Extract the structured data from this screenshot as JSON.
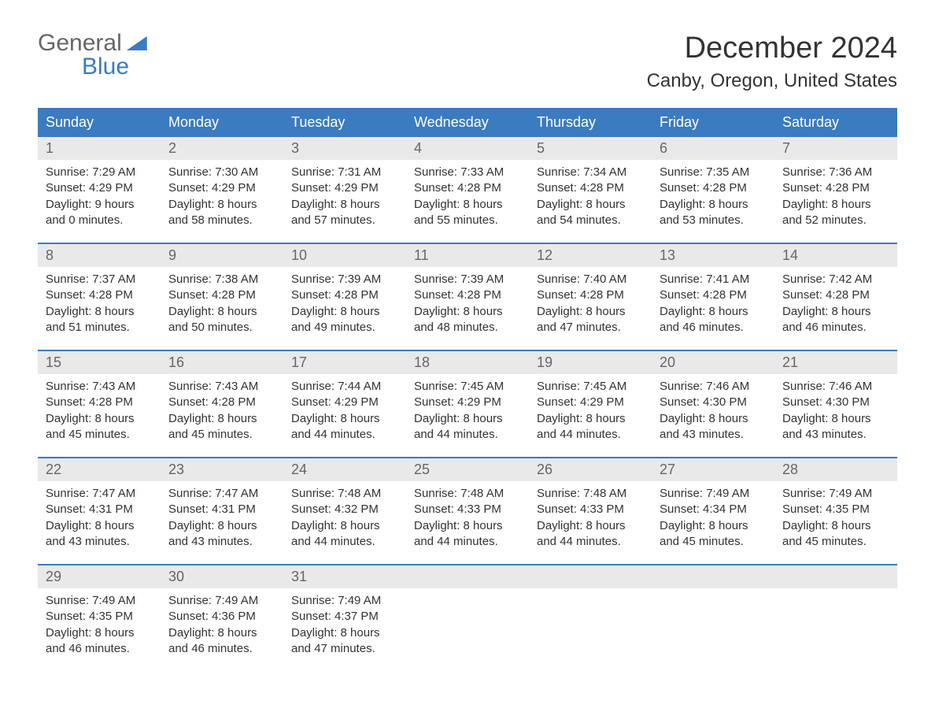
{
  "logo": {
    "text_top": "General",
    "text_bottom": "Blue"
  },
  "title": "December 2024",
  "location": "Canby, Oregon, United States",
  "colors": {
    "header_bg": "#3b7bbf",
    "header_text": "#ffffff",
    "daynum_bg": "#e9e9e9",
    "week_divider": "#3b7bbf",
    "body_text": "#333333",
    "background": "#ffffff"
  },
  "days_of_week": [
    "Sunday",
    "Monday",
    "Tuesday",
    "Wednesday",
    "Thursday",
    "Friday",
    "Saturday"
  ],
  "weeks": [
    [
      {
        "n": "1",
        "sunrise": "7:29 AM",
        "sunset": "4:29 PM",
        "daylight": "9 hours and 0 minutes."
      },
      {
        "n": "2",
        "sunrise": "7:30 AM",
        "sunset": "4:29 PM",
        "daylight": "8 hours and 58 minutes."
      },
      {
        "n": "3",
        "sunrise": "7:31 AM",
        "sunset": "4:29 PM",
        "daylight": "8 hours and 57 minutes."
      },
      {
        "n": "4",
        "sunrise": "7:33 AM",
        "sunset": "4:28 PM",
        "daylight": "8 hours and 55 minutes."
      },
      {
        "n": "5",
        "sunrise": "7:34 AM",
        "sunset": "4:28 PM",
        "daylight": "8 hours and 54 minutes."
      },
      {
        "n": "6",
        "sunrise": "7:35 AM",
        "sunset": "4:28 PM",
        "daylight": "8 hours and 53 minutes."
      },
      {
        "n": "7",
        "sunrise": "7:36 AM",
        "sunset": "4:28 PM",
        "daylight": "8 hours and 52 minutes."
      }
    ],
    [
      {
        "n": "8",
        "sunrise": "7:37 AM",
        "sunset": "4:28 PM",
        "daylight": "8 hours and 51 minutes."
      },
      {
        "n": "9",
        "sunrise": "7:38 AM",
        "sunset": "4:28 PM",
        "daylight": "8 hours and 50 minutes."
      },
      {
        "n": "10",
        "sunrise": "7:39 AM",
        "sunset": "4:28 PM",
        "daylight": "8 hours and 49 minutes."
      },
      {
        "n": "11",
        "sunrise": "7:39 AM",
        "sunset": "4:28 PM",
        "daylight": "8 hours and 48 minutes."
      },
      {
        "n": "12",
        "sunrise": "7:40 AM",
        "sunset": "4:28 PM",
        "daylight": "8 hours and 47 minutes."
      },
      {
        "n": "13",
        "sunrise": "7:41 AM",
        "sunset": "4:28 PM",
        "daylight": "8 hours and 46 minutes."
      },
      {
        "n": "14",
        "sunrise": "7:42 AM",
        "sunset": "4:28 PM",
        "daylight": "8 hours and 46 minutes."
      }
    ],
    [
      {
        "n": "15",
        "sunrise": "7:43 AM",
        "sunset": "4:28 PM",
        "daylight": "8 hours and 45 minutes."
      },
      {
        "n": "16",
        "sunrise": "7:43 AM",
        "sunset": "4:28 PM",
        "daylight": "8 hours and 45 minutes."
      },
      {
        "n": "17",
        "sunrise": "7:44 AM",
        "sunset": "4:29 PM",
        "daylight": "8 hours and 44 minutes."
      },
      {
        "n": "18",
        "sunrise": "7:45 AM",
        "sunset": "4:29 PM",
        "daylight": "8 hours and 44 minutes."
      },
      {
        "n": "19",
        "sunrise": "7:45 AM",
        "sunset": "4:29 PM",
        "daylight": "8 hours and 44 minutes."
      },
      {
        "n": "20",
        "sunrise": "7:46 AM",
        "sunset": "4:30 PM",
        "daylight": "8 hours and 43 minutes."
      },
      {
        "n": "21",
        "sunrise": "7:46 AM",
        "sunset": "4:30 PM",
        "daylight": "8 hours and 43 minutes."
      }
    ],
    [
      {
        "n": "22",
        "sunrise": "7:47 AM",
        "sunset": "4:31 PM",
        "daylight": "8 hours and 43 minutes."
      },
      {
        "n": "23",
        "sunrise": "7:47 AM",
        "sunset": "4:31 PM",
        "daylight": "8 hours and 43 minutes."
      },
      {
        "n": "24",
        "sunrise": "7:48 AM",
        "sunset": "4:32 PM",
        "daylight": "8 hours and 44 minutes."
      },
      {
        "n": "25",
        "sunrise": "7:48 AM",
        "sunset": "4:33 PM",
        "daylight": "8 hours and 44 minutes."
      },
      {
        "n": "26",
        "sunrise": "7:48 AM",
        "sunset": "4:33 PM",
        "daylight": "8 hours and 44 minutes."
      },
      {
        "n": "27",
        "sunrise": "7:49 AM",
        "sunset": "4:34 PM",
        "daylight": "8 hours and 45 minutes."
      },
      {
        "n": "28",
        "sunrise": "7:49 AM",
        "sunset": "4:35 PM",
        "daylight": "8 hours and 45 minutes."
      }
    ],
    [
      {
        "n": "29",
        "sunrise": "7:49 AM",
        "sunset": "4:35 PM",
        "daylight": "8 hours and 46 minutes."
      },
      {
        "n": "30",
        "sunrise": "7:49 AM",
        "sunset": "4:36 PM",
        "daylight": "8 hours and 46 minutes."
      },
      {
        "n": "31",
        "sunrise": "7:49 AM",
        "sunset": "4:37 PM",
        "daylight": "8 hours and 47 minutes."
      },
      null,
      null,
      null,
      null
    ]
  ],
  "labels": {
    "sunrise": "Sunrise:",
    "sunset": "Sunset:",
    "daylight": "Daylight:"
  }
}
